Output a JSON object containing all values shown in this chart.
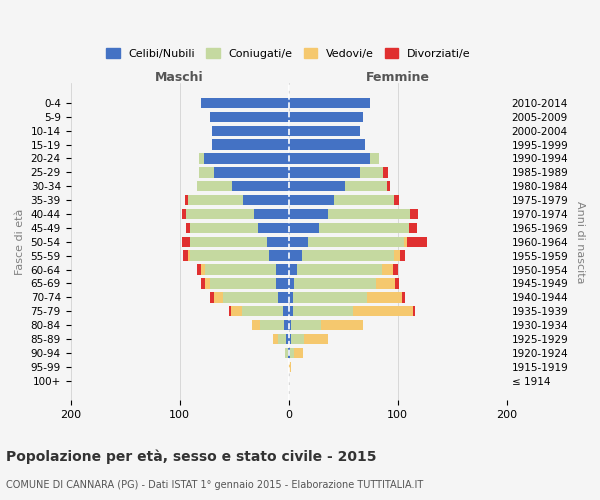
{
  "age_groups": [
    "100+",
    "95-99",
    "90-94",
    "85-89",
    "80-84",
    "75-79",
    "70-74",
    "65-69",
    "60-64",
    "55-59",
    "50-54",
    "45-49",
    "40-44",
    "35-39",
    "30-34",
    "25-29",
    "20-24",
    "15-19",
    "10-14",
    "5-9",
    "0-4"
  ],
  "birth_years": [
    "≤ 1914",
    "1915-1919",
    "1920-1924",
    "1925-1929",
    "1930-1934",
    "1935-1939",
    "1940-1944",
    "1945-1949",
    "1950-1954",
    "1955-1959",
    "1960-1964",
    "1965-1969",
    "1970-1974",
    "1975-1979",
    "1980-1984",
    "1985-1989",
    "1990-1994",
    "1995-1999",
    "2000-2004",
    "2005-2009",
    "2010-2014"
  ],
  "colors": {
    "celibi": "#4472C4",
    "coniugati": "#c5d9a0",
    "vedovi": "#f5c86e",
    "divorziati": "#e03030"
  },
  "maschi": {
    "celibi": [
      0,
      0,
      1,
      2,
      4,
      5,
      10,
      12,
      12,
      18,
      20,
      28,
      32,
      42,
      52,
      68,
      78,
      70,
      70,
      72,
      80
    ],
    "coniugati": [
      0,
      0,
      2,
      8,
      22,
      38,
      50,
      60,
      65,
      72,
      70,
      62,
      62,
      50,
      32,
      14,
      4,
      0,
      0,
      0,
      0
    ],
    "vedovi": [
      0,
      0,
      0,
      4,
      8,
      10,
      8,
      5,
      3,
      2,
      0,
      0,
      0,
      0,
      0,
      0,
      0,
      0,
      0,
      0,
      0
    ],
    "divorziati": [
      0,
      0,
      0,
      0,
      0,
      2,
      4,
      3,
      4,
      5,
      8,
      4,
      4,
      3,
      0,
      0,
      0,
      0,
      0,
      0,
      0
    ]
  },
  "femmine": {
    "celibi": [
      0,
      0,
      1,
      2,
      2,
      4,
      4,
      5,
      8,
      12,
      18,
      28,
      36,
      42,
      52,
      65,
      75,
      70,
      65,
      68,
      75
    ],
    "coniugati": [
      0,
      0,
      4,
      12,
      28,
      55,
      68,
      75,
      78,
      85,
      88,
      82,
      75,
      55,
      38,
      22,
      8,
      0,
      0,
      0,
      0
    ],
    "vedovi": [
      0,
      2,
      8,
      22,
      38,
      55,
      32,
      18,
      10,
      5,
      3,
      0,
      0,
      0,
      0,
      0,
      0,
      0,
      0,
      0,
      0
    ],
    "divorziati": [
      0,
      0,
      0,
      0,
      0,
      2,
      3,
      3,
      4,
      5,
      18,
      8,
      8,
      4,
      3,
      4,
      0,
      0,
      0,
      0,
      0
    ]
  },
  "title": "Popolazione per età, sesso e stato civile - 2015",
  "subtitle": "COMUNE DI CANNARA (PG) - Dati ISTAT 1° gennaio 2015 - Elaborazione TUTTITALIA.IT",
  "ylabel_left": "Fasce di età",
  "ylabel_right": "Anni di nascita",
  "xlabel_left": "Maschi",
  "xlabel_right": "Femmine",
  "xlim": 200,
  "bg_color": "#f5f5f5",
  "plot_bg": "#ffffff",
  "legend_labels": [
    "Celibi/Nubili",
    "Coniugati/e",
    "Vedovi/e",
    "Divorziati/e"
  ]
}
